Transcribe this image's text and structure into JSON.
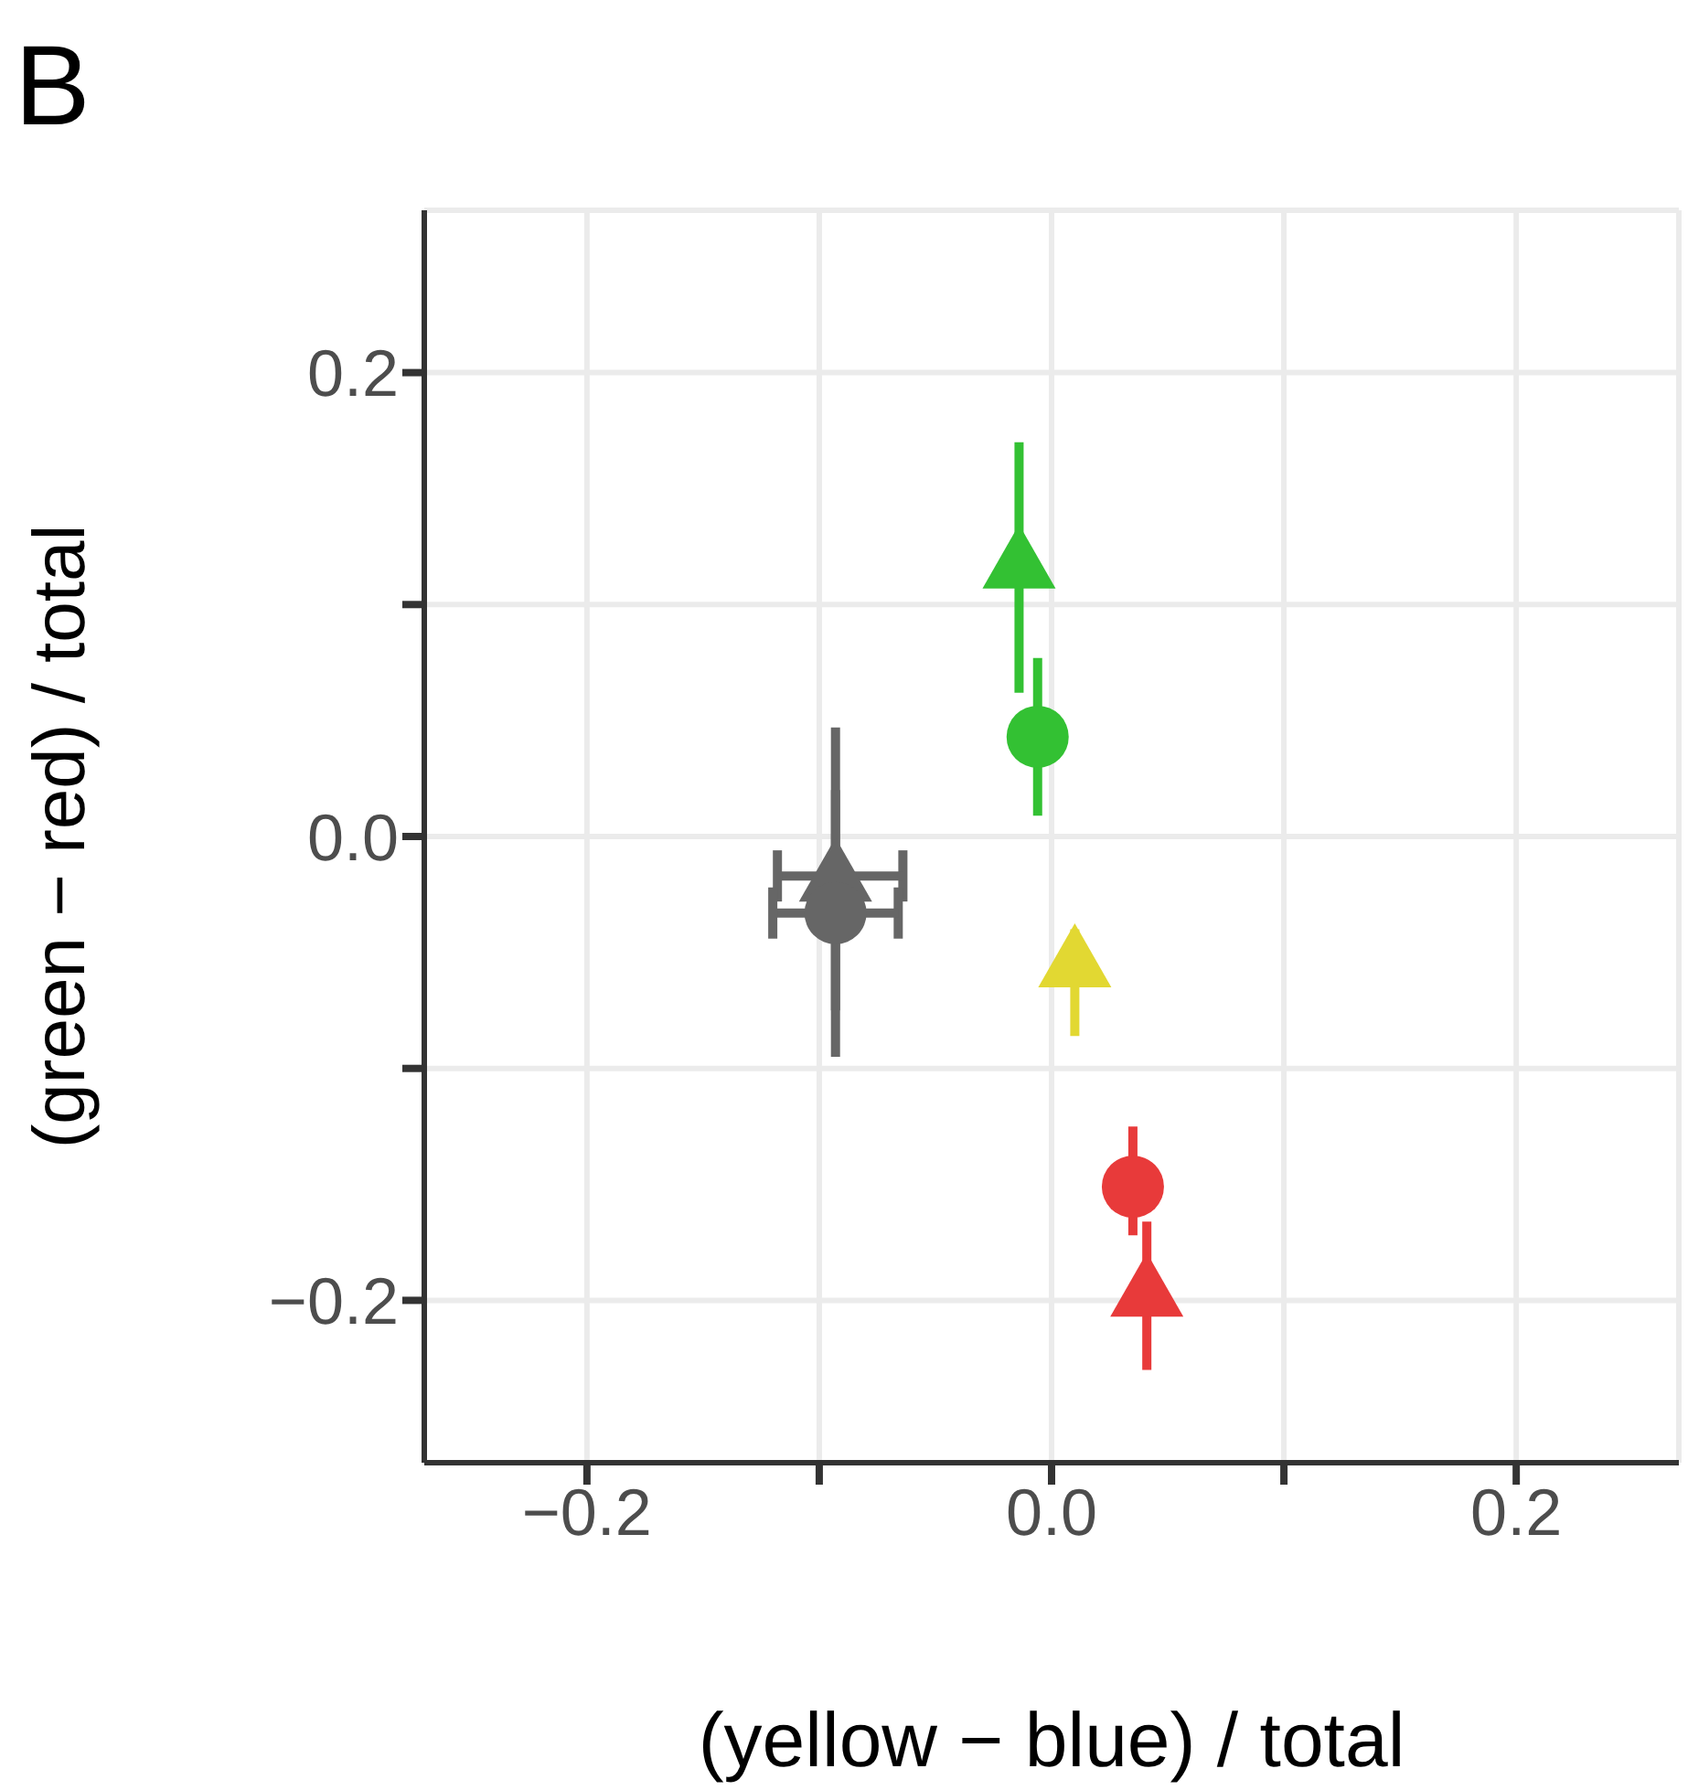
{
  "chart_data": {
    "type": "scatter",
    "title": "B",
    "xlabel": "(yellow − blue) / total",
    "ylabel": "(green − red) / total",
    "xlim": [
      -0.27,
      0.27
    ],
    "ylim": [
      -0.27,
      0.27
    ],
    "xticks": [
      {
        "value": -0.2,
        "label": "−0.2"
      },
      {
        "value": -0.1,
        "label": null
      },
      {
        "value": 0,
        "label": "0.0"
      },
      {
        "value": 0.1,
        "label": null
      },
      {
        "value": 0.2,
        "label": "0.2"
      }
    ],
    "yticks": [
      {
        "value": -0.2,
        "label": "−0.2"
      },
      {
        "value": -0.1,
        "label": null
      },
      {
        "value": 0,
        "label": "0.0"
      },
      {
        "value": 0.1,
        "label": null
      },
      {
        "value": 0.2,
        "label": "0.2"
      }
    ],
    "grid": true,
    "legend": false,
    "series": [
      {
        "color": "#666666",
        "marker": "triangle",
        "x": [
          -0.093
        ],
        "values": [
          -0.017
        ],
        "errors": [
          [
            -0.075,
            0.047
          ]
        ],
        "xerrors": [
          [
            -0.118,
            -0.064
          ]
        ]
      },
      {
        "color": "#666666",
        "marker": "circle",
        "x": [
          -0.093
        ],
        "values": [
          -0.033
        ],
        "errors": [
          [
            -0.095,
            0.02
          ]
        ],
        "xerrors": [
          [
            -0.12,
            -0.066
          ]
        ]
      },
      {
        "color": "#33c133",
        "marker": "triangle",
        "x": [
          -0.014
        ],
        "values": [
          0.118
        ],
        "errors": [
          [
            0.062,
            0.17
          ]
        ]
      },
      {
        "color": "#33c133",
        "marker": "circle",
        "x": [
          -0.006
        ],
        "values": [
          0.043
        ],
        "errors": [
          [
            0.009,
            0.077
          ]
        ]
      },
      {
        "color": "#e2d832",
        "marker": "triangle",
        "x": [
          0.01
        ],
        "values": [
          -0.054
        ],
        "errors": [
          [
            -0.086,
            -0.04
          ]
        ]
      },
      {
        "color": "#e83a3a",
        "marker": "circle",
        "x": [
          0.035
        ],
        "values": [
          -0.151
        ],
        "errors": [
          [
            -0.172,
            -0.125
          ]
        ]
      },
      {
        "color": "#e83a3a",
        "marker": "triangle",
        "x": [
          0.041
        ],
        "values": [
          -0.196
        ],
        "errors": [
          [
            -0.23,
            -0.166
          ]
        ]
      }
    ]
  }
}
